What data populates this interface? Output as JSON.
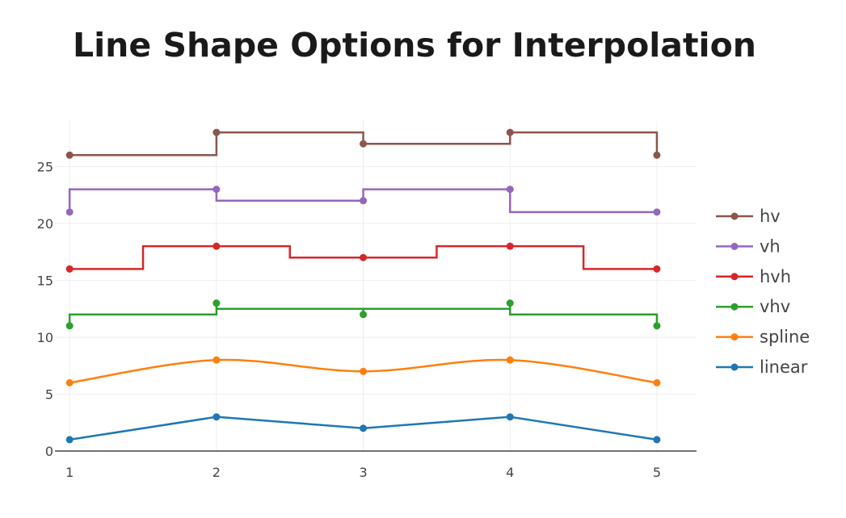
{
  "chart_data": {
    "type": "line",
    "title": "Line Shape Options for Interpolation",
    "xlabel": "",
    "ylabel": "",
    "x": [
      1,
      2,
      3,
      4,
      5
    ],
    "xlim": [
      0.9,
      5.27
    ],
    "ylim": [
      0,
      29
    ],
    "x_ticks": [
      1,
      2,
      3,
      4,
      5
    ],
    "y_ticks": [
      0,
      5,
      10,
      15,
      20,
      25
    ],
    "grid": true,
    "legend_position": "right",
    "series": [
      {
        "name": "linear",
        "shape": "linear",
        "color": "#1f77b4",
        "values": [
          1,
          3,
          2,
          3,
          1
        ]
      },
      {
        "name": "spline",
        "shape": "spline",
        "color": "#ff7f0e",
        "values": [
          6,
          8,
          7,
          8,
          6
        ]
      },
      {
        "name": "vhv",
        "shape": "vhv",
        "color": "#2ca02c",
        "values": [
          11,
          13,
          12,
          13,
          11
        ]
      },
      {
        "name": "hvh",
        "shape": "hvh",
        "color": "#d62728",
        "values": [
          16,
          18,
          17,
          18,
          16
        ]
      },
      {
        "name": "vh",
        "shape": "vh",
        "color": "#9467bd",
        "values": [
          21,
          23,
          22,
          23,
          21
        ]
      },
      {
        "name": "hv",
        "shape": "hv",
        "color": "#8c564b",
        "values": [
          26,
          28,
          27,
          28,
          26
        ]
      }
    ],
    "legend_order": [
      "hv",
      "vh",
      "hvh",
      "vhv",
      "spline",
      "linear"
    ]
  }
}
